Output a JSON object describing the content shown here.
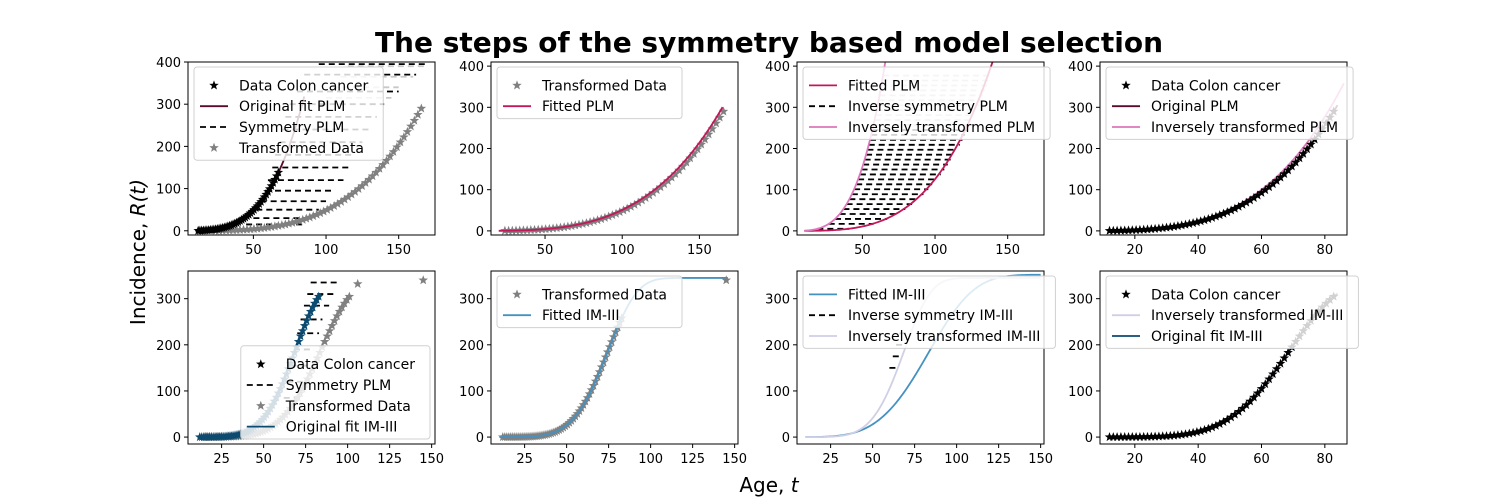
{
  "figure": {
    "title": "The steps of the symmetry based model selection",
    "xlabel_prefix": "Age, ",
    "xlabel_var": "t",
    "ylabel_prefix": "Incidence, ",
    "ylabel_var": "R(t)"
  },
  "colors": {
    "dark_maroon": "#5a0a2a",
    "crimson": "#c2185b",
    "pink": "#dd77bb",
    "gray_star": "#808080",
    "light_gray_dash": "#c8c8c8",
    "black": "#000000",
    "navy": "#0d4a70",
    "mid_blue": "#4592c1",
    "lavender": "#cfcfe6",
    "light_blue_star": "#dce6ee"
  },
  "chart_data": [
    {
      "type": "line",
      "row": 0,
      "col": 0,
      "xlim": [
        5,
        175
      ],
      "ylim": [
        -10,
        400
      ],
      "xticks": [
        50,
        100,
        150
      ],
      "yticks": [
        0,
        100,
        200,
        300,
        400
      ],
      "legend_position": "top-left",
      "legend": [
        {
          "label": "Data Colon cancer",
          "kind": "star",
          "color": "#000000"
        },
        {
          "label": "Original fit PLM",
          "kind": "line",
          "color": "#5a0a2a"
        },
        {
          "label": "Symmetry PLM",
          "kind": "dash",
          "color": "#000000"
        },
        {
          "label": "Transformed Data",
          "kind": "star",
          "color": "#808080"
        }
      ]
    },
    {
      "type": "line",
      "row": 0,
      "col": 1,
      "xlim": [
        15,
        175
      ],
      "ylim": [
        -10,
        410
      ],
      "xticks": [
        50,
        100,
        150
      ],
      "yticks": [
        0,
        100,
        200,
        300,
        400
      ],
      "legend_position": "top-left",
      "legend": [
        {
          "label": "Transformed Data",
          "kind": "star",
          "color": "#808080"
        },
        {
          "label": "Fitted PLM",
          "kind": "line",
          "color": "#c2185b"
        }
      ]
    },
    {
      "type": "line",
      "row": 0,
      "col": 2,
      "xlim": [
        5,
        175
      ],
      "ylim": [
        -10,
        410
      ],
      "xticks": [
        50,
        100,
        150
      ],
      "yticks": [
        0,
        100,
        200,
        300,
        400
      ],
      "legend_position": "top-left",
      "legend": [
        {
          "label": "Fitted PLM",
          "kind": "line",
          "color": "#c2185b"
        },
        {
          "label": "Inverse symmetry PLM",
          "kind": "dash",
          "color": "#000000"
        },
        {
          "label": "Inversely transformed PLM",
          "kind": "line",
          "color": "#dd77bb"
        }
      ]
    },
    {
      "type": "line",
      "row": 0,
      "col": 3,
      "xlim": [
        9,
        87
      ],
      "ylim": [
        -10,
        410
      ],
      "xticks": [
        20,
        40,
        60,
        80
      ],
      "yticks": [
        0,
        100,
        200,
        300,
        400
      ],
      "legend_position": "top-left",
      "legend": [
        {
          "label": "Data Colon cancer",
          "kind": "star",
          "color": "#000000"
        },
        {
          "label": "Original PLM",
          "kind": "line",
          "color": "#5a0a2a"
        },
        {
          "label": "Inversely transformed PLM",
          "kind": "line",
          "color": "#dd77bb"
        }
      ]
    },
    {
      "type": "line",
      "row": 1,
      "col": 0,
      "xlim": [
        5,
        152
      ],
      "ylim": [
        -15,
        360
      ],
      "xticks": [
        25,
        50,
        75,
        100,
        125,
        150
      ],
      "yticks": [
        0,
        100,
        200,
        300
      ],
      "legend_position": "lower-right",
      "legend": [
        {
          "label": "Data Colon cancer",
          "kind": "star",
          "color": "#000000"
        },
        {
          "label": "Symmetry PLM",
          "kind": "dash",
          "color": "#000000"
        },
        {
          "label": "Transformed Data",
          "kind": "star",
          "color": "#808080"
        },
        {
          "label": "Original fit IM-III",
          "kind": "line",
          "color": "#0d4a70"
        }
      ]
    },
    {
      "type": "line",
      "row": 1,
      "col": 1,
      "xlim": [
        5,
        152
      ],
      "ylim": [
        -15,
        360
      ],
      "xticks": [
        25,
        50,
        75,
        100,
        125,
        150
      ],
      "yticks": [
        0,
        100,
        200,
        300
      ],
      "legend_position": "top-left",
      "legend": [
        {
          "label": "Transformed Data",
          "kind": "star",
          "color": "#808080"
        },
        {
          "label": "Fitted IM-III",
          "kind": "line",
          "color": "#4592c1"
        }
      ]
    },
    {
      "type": "line",
      "row": 1,
      "col": 2,
      "xlim": [
        5,
        152
      ],
      "ylim": [
        -15,
        360
      ],
      "xticks": [
        25,
        50,
        75,
        100,
        125,
        150
      ],
      "yticks": [
        0,
        100,
        200,
        300
      ],
      "legend_position": "top-left",
      "legend": [
        {
          "label": "Fitted IM-III",
          "kind": "line",
          "color": "#4592c1"
        },
        {
          "label": "Inverse symmetry IM-III",
          "kind": "dash",
          "color": "#000000"
        },
        {
          "label": "Inversely transformed IM-III",
          "kind": "line",
          "color": "#cfcfe6"
        }
      ]
    },
    {
      "type": "line",
      "row": 1,
      "col": 3,
      "xlim": [
        9,
        87
      ],
      "ylim": [
        -15,
        360
      ],
      "xticks": [
        20,
        40,
        60,
        80
      ],
      "yticks": [
        0,
        100,
        200,
        300
      ],
      "legend_position": "top-left",
      "legend": [
        {
          "label": "Data Colon cancer",
          "kind": "star",
          "color": "#000000"
        },
        {
          "label": "Inversely transformed IM-III",
          "kind": "line",
          "color": "#cfcfe6"
        },
        {
          "label": "Original fit IM-III",
          "kind": "line",
          "color": "#0d4a70"
        }
      ]
    }
  ]
}
